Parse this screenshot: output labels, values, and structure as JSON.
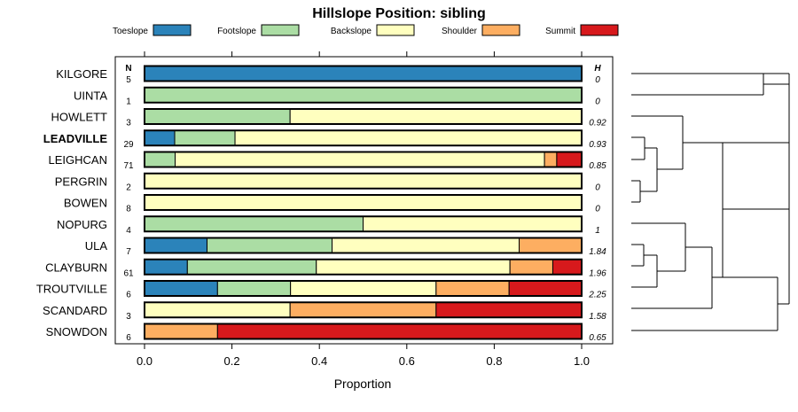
{
  "chart_data": {
    "type": "bar",
    "orientation": "horizontal",
    "stacked": true,
    "title": "Hillslope Position: sibling",
    "xlabel": "Proportion",
    "xlim": [
      0,
      1
    ],
    "xticks": [
      "0.0",
      "0.2",
      "0.4",
      "0.6",
      "0.8",
      "1.0"
    ],
    "n_header": "N",
    "h_header": "H",
    "categories": [
      "Toeslope",
      "Footslope",
      "Backslope",
      "Shoulder",
      "Summit"
    ],
    "colors": {
      "Toeslope": "#2b83ba",
      "Footslope": "#abdda4",
      "Backslope": "#ffffbf",
      "Shoulder": "#fdae61",
      "Summit": "#d7191c"
    },
    "highlight": "LEADVILLE",
    "rows": [
      {
        "label": "KILGORE",
        "n": "5",
        "h": "0",
        "values": [
          1.0,
          0,
          0,
          0,
          0
        ]
      },
      {
        "label": "UINTA",
        "n": "1",
        "h": "0",
        "values": [
          0,
          1.0,
          0,
          0,
          0
        ]
      },
      {
        "label": "HOWLETT",
        "n": "3",
        "h": "0.92",
        "values": [
          0,
          0.333,
          0.667,
          0,
          0
        ]
      },
      {
        "label": "LEADVILLE",
        "n": "29",
        "h": "0.93",
        "values": [
          0.069,
          0.138,
          0.793,
          0,
          0
        ]
      },
      {
        "label": "LEIGHCAN",
        "n": "71",
        "h": "0.85",
        "values": [
          0,
          0.07,
          0.845,
          0.028,
          0.057
        ]
      },
      {
        "label": "PERGRIN",
        "n": "2",
        "h": "0",
        "values": [
          0,
          0,
          1.0,
          0,
          0
        ]
      },
      {
        "label": "BOWEN",
        "n": "8",
        "h": "0",
        "values": [
          0,
          0,
          1.0,
          0,
          0
        ]
      },
      {
        "label": "NOPURG",
        "n": "4",
        "h": "1",
        "values": [
          0,
          0.5,
          0.5,
          0,
          0
        ]
      },
      {
        "label": "ULA",
        "n": "7",
        "h": "1.84",
        "values": [
          0.143,
          0.286,
          0.428,
          0.143,
          0
        ]
      },
      {
        "label": "CLAYBURN",
        "n": "61",
        "h": "1.96",
        "values": [
          0.098,
          0.295,
          0.443,
          0.098,
          0.066
        ]
      },
      {
        "label": "TROUTVILLE",
        "n": "6",
        "h": "2.25",
        "values": [
          0.167,
          0.167,
          0.333,
          0.167,
          0.166
        ]
      },
      {
        "label": "SCANDARD",
        "n": "3",
        "h": "1.58",
        "values": [
          0,
          0,
          0.333,
          0.334,
          0.333
        ]
      },
      {
        "label": "SNOWDON",
        "n": "6",
        "h": "0.65",
        "values": [
          0,
          0,
          0,
          0.167,
          0.833
        ]
      }
    ]
  }
}
